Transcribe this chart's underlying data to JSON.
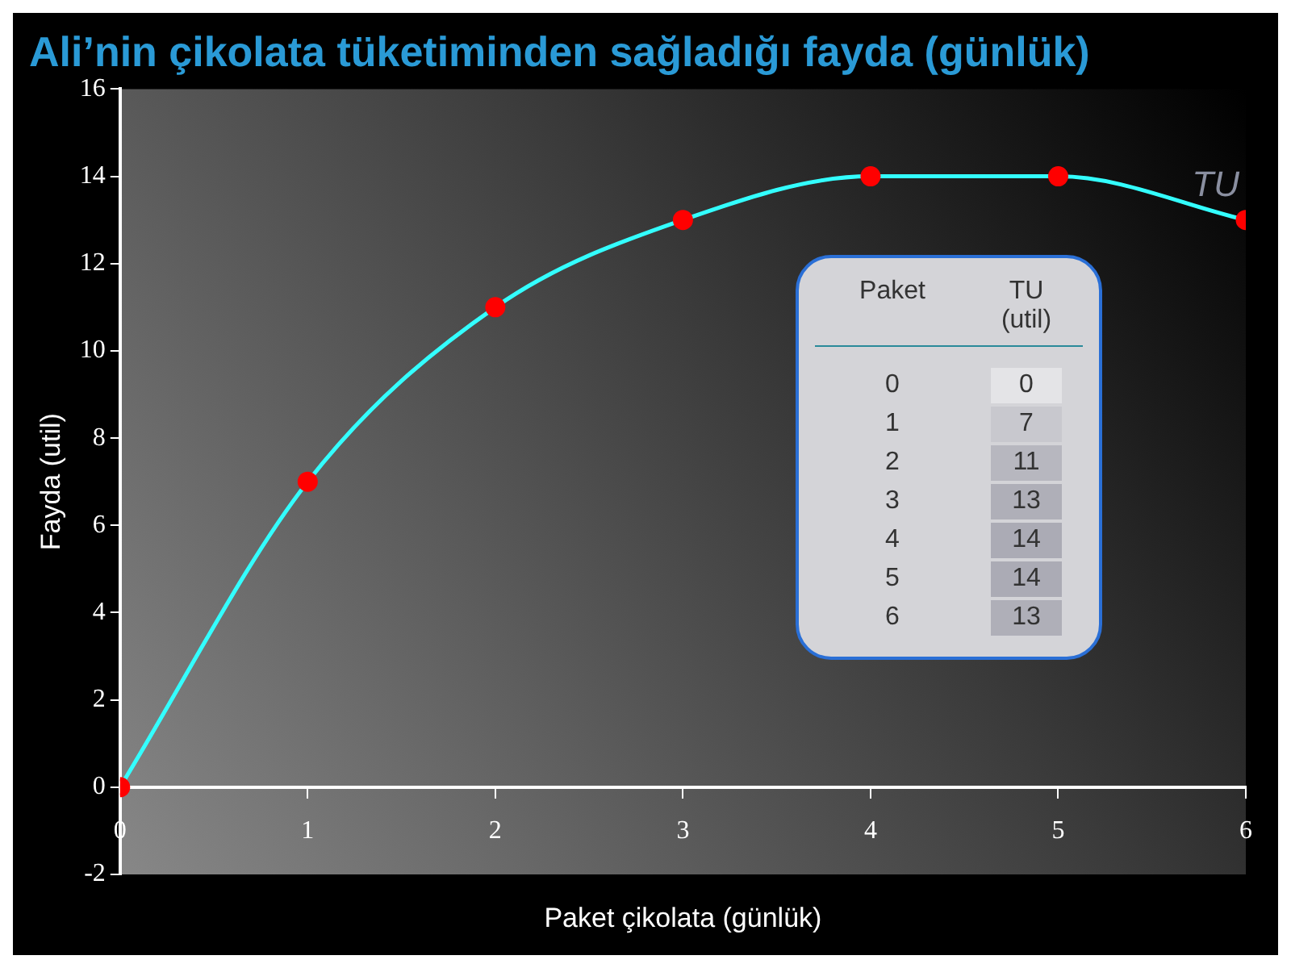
{
  "chart_data": [
    {
      "type": "line",
      "title": "Ali’nin çikolata tüketiminden sağladığı fayda (günlük)",
      "xlabel": "Paket çikolata (günlük)",
      "ylabel": "Fayda (util)",
      "x": [
        0,
        1,
        2,
        3,
        4,
        5,
        6
      ],
      "series": [
        {
          "name": "TU",
          "color": "#33ffff",
          "values": [
            0,
            7,
            11,
            13,
            14,
            14,
            13
          ]
        }
      ],
      "xlim": [
        0,
        6
      ],
      "xticks": [
        0,
        1,
        2,
        3,
        4,
        5,
        6
      ],
      "ylim": [
        -2,
        16
      ],
      "yticks": [
        -2,
        0,
        2,
        4,
        6,
        8,
        10,
        12,
        14,
        16
      ],
      "marker": "circle",
      "grid": false,
      "legend": false
    },
    {
      "type": "heatmap",
      "ylabel": "Paket",
      "categories": [
        "TU (util)"
      ],
      "y_categories": [
        "0",
        "1",
        "2",
        "3",
        "4",
        "5",
        "6"
      ],
      "cells": [
        [
          0
        ],
        [
          7
        ],
        [
          11
        ],
        [
          13
        ],
        [
          14
        ],
        [
          14
        ],
        [
          13
        ]
      ],
      "cell_labels": [
        [
          "0"
        ],
        [
          "7"
        ],
        [
          "11"
        ],
        [
          "13"
        ],
        [
          "14"
        ],
        [
          "14"
        ],
        [
          "13"
        ]
      ]
    }
  ]
}
